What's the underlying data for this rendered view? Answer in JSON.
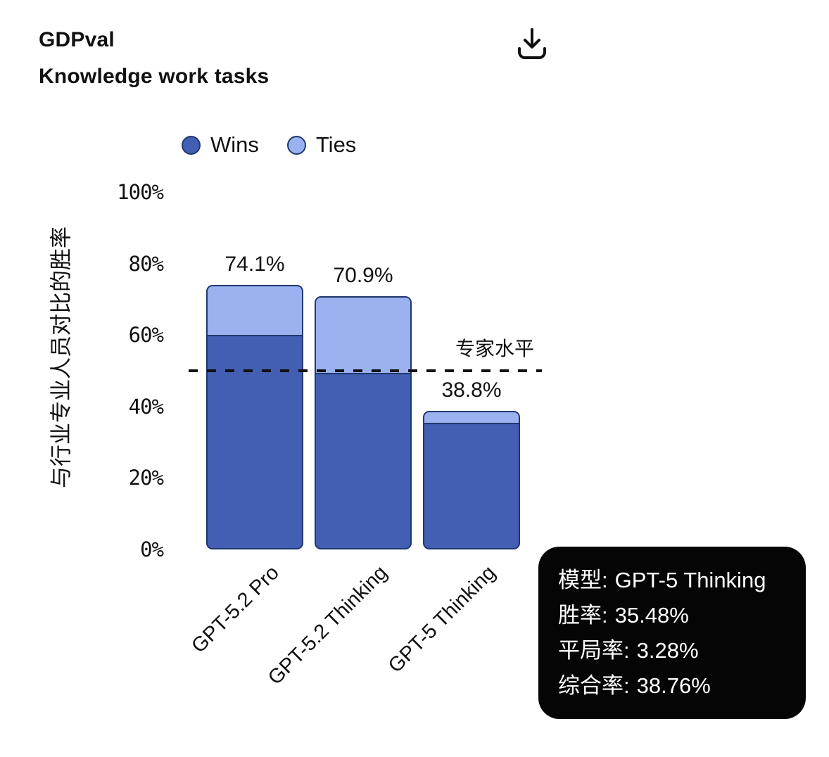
{
  "header": {
    "title_line1": "GDPval",
    "title_line2": "Knowledge work tasks"
  },
  "legend": {
    "items": [
      {
        "label": "Wins",
        "color": "#425fb3"
      },
      {
        "label": "Ties",
        "color": "#9bb2f1"
      }
    ]
  },
  "chart_data": {
    "type": "bar",
    "stacked": true,
    "categories": [
      "GPT-5.2 Pro",
      "GPT-5.2 Thinking",
      "GPT-5 Thinking"
    ],
    "series": [
      {
        "name": "Wins",
        "values": [
          60.0,
          49.5,
          35.48
        ],
        "color": "#425fb3"
      },
      {
        "name": "Ties",
        "values": [
          14.1,
          21.4,
          3.28
        ],
        "color": "#9bb2f1"
      }
    ],
    "totals_display": [
      "74.1%",
      "70.9%",
      "38.8%"
    ],
    "ylabel": "与行业专业人员对比的胜率",
    "yticks": [
      "100%",
      "80%",
      "60%",
      "40%",
      "20%",
      "0%"
    ],
    "ytick_values": [
      100,
      80,
      60,
      40,
      20,
      0
    ],
    "ylim": [
      0,
      100
    ],
    "grid": false,
    "legend_position": "top",
    "bar_edge_color": "#20386e",
    "reference_line": {
      "value": 50,
      "label": "专家水平",
      "style": "dashed",
      "color": "#111111"
    }
  },
  "tooltip": {
    "bg": "#050505",
    "text_color": "#ffffff",
    "rows": [
      {
        "label": "模型:",
        "value": "GPT-5 Thinking"
      },
      {
        "label": "胜率:",
        "value": "35.48%"
      },
      {
        "label": "平局率:",
        "value": "3.28%"
      },
      {
        "label": "综合率:",
        "value": "38.76%"
      }
    ]
  }
}
